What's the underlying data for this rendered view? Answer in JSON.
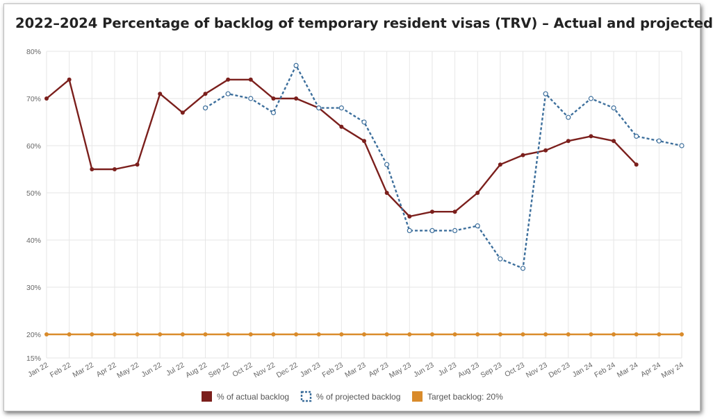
{
  "chart_data": {
    "type": "line",
    "title": "2022–2024 Percentage of backlog of temporary resident visas (TRV) – Actual and projected",
    "categories": [
      "Jan 22",
      "Feb 22",
      "Mar 22",
      "Apr 22",
      "May 22",
      "Jun 22",
      "Jul 22",
      "Aug 22",
      "Sep 22",
      "Oct 22",
      "Nov 22",
      "Dec 22",
      "Jan 23",
      "Feb 23",
      "Mar 23",
      "Apr 23",
      "May 23",
      "Jun 23",
      "Jul 23",
      "Aug 23",
      "Sep 23",
      "Oct 23",
      "Nov 23",
      "Dec 23",
      "Jan 24",
      "Feb 24",
      "Mar 24",
      "Apr 24",
      "May 24"
    ],
    "ylim": [
      15,
      80
    ],
    "yticks": [
      15,
      20,
      30,
      40,
      50,
      60,
      70,
      80
    ],
    "ytick_labels": [
      "15%",
      "20%",
      "30%",
      "40%",
      "50%",
      "60%",
      "70%",
      "80%"
    ],
    "grid": true,
    "legend_position": "bottom",
    "series": [
      {
        "name": "% of actual backlog",
        "color": "#7b1f1c",
        "style": "solid",
        "values": [
          70,
          74,
          55,
          55,
          56,
          71,
          67,
          71,
          74,
          74,
          70,
          70,
          68,
          64,
          61,
          50,
          45,
          46,
          46,
          50,
          56,
          58,
          59,
          61,
          62,
          61,
          56,
          null,
          null
        ]
      },
      {
        "name": "% of projected backlog",
        "color": "#3d6f9c",
        "style": "dotted",
        "values": [
          null,
          null,
          null,
          null,
          null,
          null,
          null,
          68,
          71,
          70,
          67,
          77,
          68,
          68,
          65,
          56,
          42,
          42,
          42,
          43,
          36,
          34,
          71,
          66,
          70,
          68,
          62,
          61,
          60
        ]
      },
      {
        "name": "Target backlog: 20%",
        "color": "#d98b2b",
        "style": "solid",
        "values": [
          20,
          20,
          20,
          20,
          20,
          20,
          20,
          20,
          20,
          20,
          20,
          20,
          20,
          20,
          20,
          20,
          20,
          20,
          20,
          20,
          20,
          20,
          20,
          20,
          20,
          20,
          20,
          20,
          20
        ]
      }
    ]
  }
}
